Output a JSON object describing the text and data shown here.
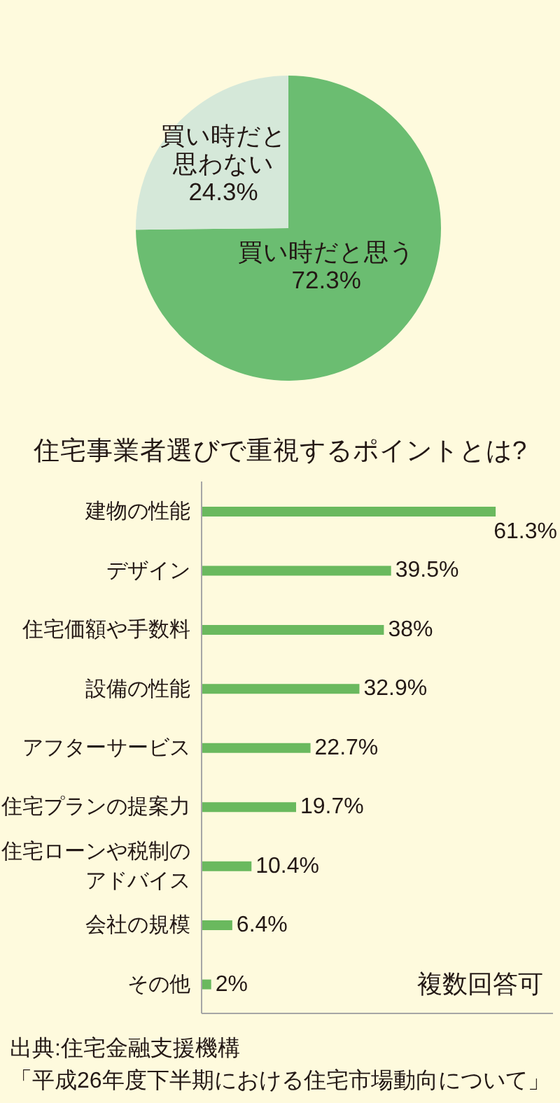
{
  "chart_data": [
    {
      "type": "pie",
      "categories": [
        "買い時だと思う",
        "買い時だと思わない"
      ],
      "values": [
        72.3,
        24.3
      ],
      "colors": [
        "#6bbd71",
        "#d5e8d9"
      ],
      "value_labels": [
        "72.3%",
        "24.3%"
      ]
    },
    {
      "type": "bar",
      "title": "住宅事業者選びで重視するポイントとは?",
      "orientation": "horizontal",
      "categories": [
        "建物の性能",
        "デザイン",
        "住宅価額や手数料",
        "設備の性能",
        "アフターサービス",
        "住宅プランの提案力",
        "住宅ローンや税制のアドバイス",
        "会社の規模",
        "その他"
      ],
      "values": [
        61.3,
        39.5,
        38,
        32.9,
        22.7,
        19.7,
        10.4,
        6.4,
        2
      ],
      "color": "#6ab95e",
      "value_labels": [
        "61.3%",
        "39.5%",
        "38%",
        "32.9%",
        "22.7%",
        "19.7%",
        "10.4%",
        "6.4%",
        "2%"
      ],
      "tick_labels": "y",
      "annotations": [
        "複数回答可",
        "出典:住宅金融支援機構",
        "「平成26年度下半期における住宅市場動向について」"
      ]
    }
  ]
}
